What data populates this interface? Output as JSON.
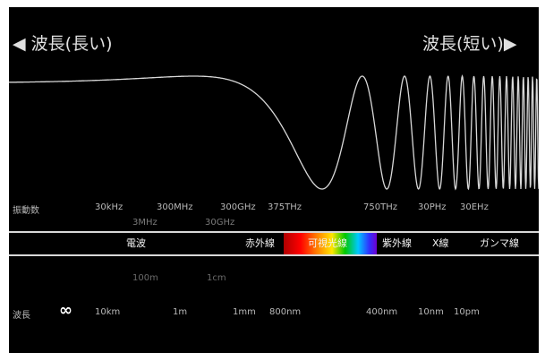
{
  "header": {
    "long_label": "◀ 波長(長い)",
    "short_label": "波長(短い)▶"
  },
  "frequency": {
    "label": "振動数",
    "ticks": [
      "30kHz",
      "300MHz",
      "300GHz",
      "375THz",
      "750THz",
      "30PHz",
      "30EHz"
    ],
    "ticks_secondary": [
      "3MHz",
      "30GHz"
    ]
  },
  "bands": [
    "電波",
    "赤外線",
    "可視光線",
    "紫外線",
    "X線",
    "ガンマ線"
  ],
  "wavelength": {
    "label": "波長",
    "infinity": "∞",
    "ticks": [
      "10km",
      "1m",
      "1mm",
      "800nm",
      "400nm",
      "10nm",
      "10pm"
    ],
    "ticks_secondary": [
      "100m",
      "1cm"
    ]
  },
  "colors": {
    "background": "#000000",
    "wave": "#d8d8d8",
    "text": "#e0e0e0",
    "text_dim": "#7a7a7a"
  }
}
